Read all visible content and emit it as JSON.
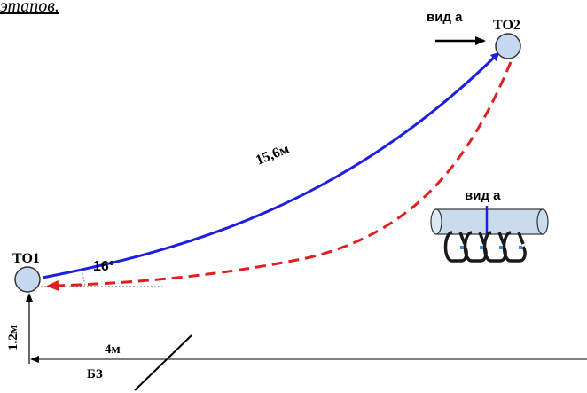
{
  "header_text": "этапов.",
  "labels": {
    "view_top": "вид а",
    "point2": "ТО2",
    "point1": "ТО1",
    "length": "15,6м",
    "angle": "16°",
    "view_inset": "вид а",
    "height": "1.2м",
    "distance": "4м",
    "zone": "БЗ"
  },
  "colors": {
    "rope_solid": "#1f1fe0",
    "rope_dashed": "#e02020",
    "node_fill": "#c5d9f1",
    "pipe_fill": "#c8dcee",
    "carabiner_accent": "#3a8fd9"
  }
}
